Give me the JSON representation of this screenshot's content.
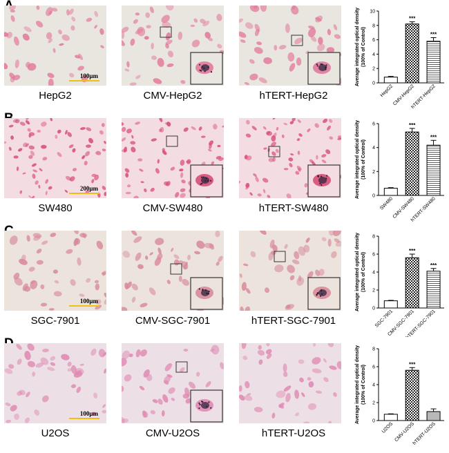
{
  "panels": [
    {
      "label": "A",
      "captions": [
        "HepG2",
        "CMV-HepG2",
        "hTERT-HepG2"
      ],
      "scale_label": "100μm",
      "bg": "#e9e5df",
      "cell_color": "#e27a9b",
      "chart": {
        "type": "bar",
        "ylabel_line1": "Average  integrated optical density",
        "ylabel_line2": "(100% of Control)",
        "categories": [
          "HepG2",
          "CMV-HepG2",
          "hTERT-HepG2"
        ],
        "values": [
          0.8,
          8.2,
          5.8
        ],
        "errors": [
          0.1,
          0.3,
          0.5
        ],
        "sig": [
          "",
          "***",
          "***"
        ],
        "ylim": [
          0,
          10
        ],
        "yticks": [
          "0",
          "2",
          "4",
          "6",
          "8",
          "10"
        ],
        "ytick_values": [
          0,
          2,
          4,
          6,
          8,
          10
        ]
      }
    },
    {
      "label": "B",
      "captions": [
        "SW480",
        "CMV-SW480",
        "hTERT-SW480"
      ],
      "scale_label": "200μm",
      "bg": "#f4dde2",
      "cell_color": "#d84e78",
      "chart": {
        "type": "bar",
        "ylabel_line1": "Average  integrated optical density",
        "ylabel_line2": "(100% of Control)",
        "categories": [
          "SW480",
          "CMV-SW480",
          "hTERT-SW480"
        ],
        "values": [
          0.6,
          5.3,
          4.2
        ],
        "errors": [
          0.05,
          0.3,
          0.4
        ],
        "sig": [
          "",
          "***",
          "***"
        ],
        "ylim": [
          0,
          6
        ],
        "yticks": [
          "0",
          "2",
          "4",
          "6"
        ],
        "ytick_values": [
          0,
          2,
          4,
          6
        ]
      }
    },
    {
      "label": "C",
      "captions": [
        "SGC-7901",
        "CMV-SGC-7901",
        "hTERT-SGC-7901"
      ],
      "scale_label": "100μm",
      "bg": "#ebe3dc",
      "cell_color": "#d8899a",
      "chart": {
        "type": "bar",
        "ylabel_line1": "Average  integrated optical density",
        "ylabel_line2": "(100% of Control)",
        "categories": [
          "SGC-7901",
          "CMV-SGC-7901",
          "hTERT-SGC-7901"
        ],
        "values": [
          0.8,
          5.6,
          4.1
        ],
        "errors": [
          0.05,
          0.4,
          0.3
        ],
        "sig": [
          "",
          "***",
          "***"
        ],
        "ylim": [
          0,
          8
        ],
        "yticks": [
          "0",
          "2",
          "4",
          "6",
          "8"
        ],
        "ytick_values": [
          0,
          2,
          4,
          6,
          8
        ]
      }
    },
    {
      "label": "D",
      "captions": [
        "U2OS",
        "CMV-U2OS",
        "hTERT-U2OS"
      ],
      "scale_label": "100μm",
      "bg": "#ece0e6",
      "cell_color": "#e08ab2",
      "chart": {
        "type": "bar",
        "ylabel_line1": "Average  integrated optical density",
        "ylabel_line2": "(100% of Control)",
        "categories": [
          "U2OS",
          "CMV-U2OS",
          "hTERT-U2OS"
        ],
        "values": [
          0.7,
          5.6,
          1.0
        ],
        "errors": [
          0.05,
          0.3,
          0.3
        ],
        "sig": [
          "",
          "***",
          ""
        ],
        "ylim": [
          0,
          8
        ],
        "yticks": [
          "0",
          "2",
          "4",
          "6",
          "8"
        ],
        "ytick_values": [
          0,
          2,
          4,
          6,
          8
        ]
      }
    }
  ]
}
